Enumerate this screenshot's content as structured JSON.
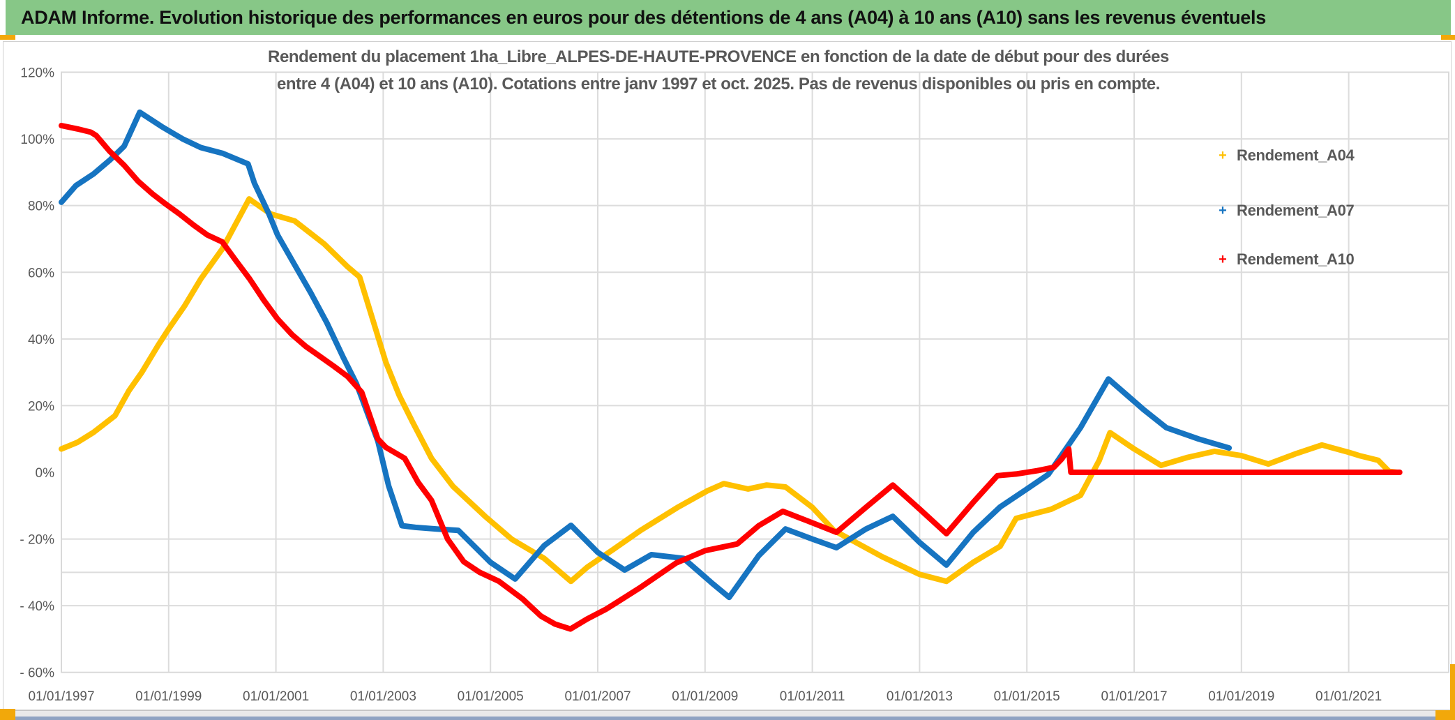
{
  "header": {
    "title": "ADAM Informe. Evolution historique des performances en euros pour des détentions de 4 ans (A04) à 10 ans (A10) sans les revenus éventuels"
  },
  "legend_marker_glyph": "+",
  "colors": {
    "header_green": "#87C787",
    "accent_orange": "#F2A80A",
    "gridline": "#DCDCDC",
    "axis_text": "#595959",
    "series_a04": "#FFC000",
    "series_a07": "#1674C1",
    "series_a10": "#FF0000",
    "bottom_band": "#E9E9E9",
    "bottom_blue_line": "#8FA3C2"
  },
  "chart_data": {
    "type": "line",
    "title_line1": "Rendement du placement 1ha_Libre_ALPES-DE-HAUTE-PROVENCE en fonction de la date de début pour des durées",
    "title_line2": "entre 4 (A04) et 10 ans (A10). Cotations entre janv 1997 et oct. 2025. Pas de revenus disponibles ou pris en compte.",
    "xlabel": "",
    "ylabel": "",
    "x_tick_years": [
      1997,
      1999,
      2001,
      2003,
      2005,
      2007,
      2009,
      2011,
      2013,
      2015,
      2017,
      2019,
      2021
    ],
    "x_tick_labels": [
      "01/01/1997",
      "01/01/1999",
      "01/01/2001",
      "01/01/2003",
      "01/01/2005",
      "01/01/2007",
      "01/01/2009",
      "01/01/2011",
      "01/01/2013",
      "01/01/2015",
      "01/01/2017",
      "01/01/2019",
      "01/01/2021"
    ],
    "y_ticks": [
      {
        "v": 120,
        "label": "120%"
      },
      {
        "v": 100,
        "label": "100%"
      },
      {
        "v": 80,
        "label": "80%"
      },
      {
        "v": 60,
        "label": "60%"
      },
      {
        "v": 40,
        "label": "40%"
      },
      {
        "v": 20,
        "label": "20%"
      },
      {
        "v": 0,
        "label": "0%"
      },
      {
        "v": -20,
        "label": "- 20%"
      },
      {
        "v": -40,
        "label": "- 40%"
      },
      {
        "v": -60,
        "label": "- 60%"
      }
    ],
    "gridlines_pct": [
      100,
      80,
      60,
      40,
      20,
      -20,
      -30,
      -40
    ],
    "xlim_years": [
      1997,
      2022.85
    ],
    "ylim_pct": [
      -60,
      120
    ],
    "grid": true,
    "legend_position": "right-inside",
    "legend": [
      {
        "name": "Rendement_A04",
        "color": "#FFC000"
      },
      {
        "name": "Rendement_A07",
        "color": "#1674C1"
      },
      {
        "name": "Rendement_A10",
        "color": "#FF0000"
      }
    ],
    "series": [
      {
        "name": "Rendement_A04",
        "color": "#FFC000",
        "points": [
          [
            1997.0,
            7
          ],
          [
            1997.3,
            9
          ],
          [
            1997.6,
            12
          ],
          [
            1998.0,
            17
          ],
          [
            1998.26,
            24.5
          ],
          [
            1998.5,
            30
          ],
          [
            1998.8,
            38
          ],
          [
            1999.0,
            43
          ],
          [
            1999.3,
            50
          ],
          [
            1999.6,
            58
          ],
          [
            2000.0,
            67
          ],
          [
            2000.2,
            73
          ],
          [
            2000.5,
            82
          ],
          [
            2000.9,
            77.5
          ],
          [
            2001.35,
            75.4
          ],
          [
            2001.9,
            68.5
          ],
          [
            2002.34,
            61.6
          ],
          [
            2002.56,
            58.6
          ],
          [
            2003.05,
            33
          ],
          [
            2003.3,
            23
          ],
          [
            2003.55,
            15
          ],
          [
            2003.9,
            4.2
          ],
          [
            2004.3,
            -4.2
          ],
          [
            2004.9,
            -13.2
          ],
          [
            2005.4,
            -20.1
          ],
          [
            2006.0,
            -25.8
          ],
          [
            2006.5,
            -32.7
          ],
          [
            2006.8,
            -28.5
          ],
          [
            2007.3,
            -23
          ],
          [
            2007.8,
            -17.4
          ],
          [
            2008.5,
            -10.4
          ],
          [
            2009.05,
            -5.5
          ],
          [
            2009.35,
            -3.4
          ],
          [
            2009.8,
            -5
          ],
          [
            2010.15,
            -3.8
          ],
          [
            2010.5,
            -4.4
          ],
          [
            2011.0,
            -10.5
          ],
          [
            2011.4,
            -17.4
          ],
          [
            2012.3,
            -25.3
          ],
          [
            2013.0,
            -30.6
          ],
          [
            2013.5,
            -32.7
          ],
          [
            2014.0,
            -27
          ],
          [
            2014.5,
            -22.2
          ],
          [
            2014.8,
            -13.8
          ],
          [
            2015.45,
            -11.1
          ],
          [
            2016.0,
            -6.9
          ],
          [
            2016.35,
            3.6
          ],
          [
            2016.55,
            11.9
          ],
          [
            2017.0,
            7
          ],
          [
            2017.5,
            2.1
          ],
          [
            2018.0,
            4.5
          ],
          [
            2018.5,
            6.3
          ],
          [
            2019.0,
            5
          ],
          [
            2019.5,
            2.5
          ],
          [
            2020.0,
            5.5
          ],
          [
            2020.5,
            8.2
          ],
          [
            2021.0,
            6
          ],
          [
            2021.2,
            5
          ],
          [
            2021.55,
            3.6
          ],
          [
            2021.75,
            0.3
          ],
          [
            2021.9,
            0
          ]
        ]
      },
      {
        "name": "Rendement_A07",
        "color": "#1674C1",
        "points": [
          [
            1997.0,
            81
          ],
          [
            1997.27,
            86
          ],
          [
            1997.6,
            89.5
          ],
          [
            1997.9,
            93.6
          ],
          [
            1998.17,
            97.8
          ],
          [
            1998.46,
            108
          ],
          [
            1998.87,
            103.7
          ],
          [
            1999.26,
            100
          ],
          [
            1999.6,
            97.4
          ],
          [
            2000.0,
            95.7
          ],
          [
            2000.48,
            92.5
          ],
          [
            2000.6,
            86.7
          ],
          [
            2000.87,
            77.5
          ],
          [
            2001.03,
            71.2
          ],
          [
            2001.35,
            62.2
          ],
          [
            2001.65,
            53.8
          ],
          [
            2001.95,
            44.8
          ],
          [
            2002.26,
            34.3
          ],
          [
            2002.5,
            26.6
          ],
          [
            2002.9,
            9.4
          ],
          [
            2003.1,
            -4
          ],
          [
            2003.35,
            -16
          ],
          [
            2003.6,
            -16.5
          ],
          [
            2004.0,
            -17
          ],
          [
            2004.4,
            -17.4
          ],
          [
            2005.0,
            -27
          ],
          [
            2005.46,
            -32
          ],
          [
            2006.0,
            -22
          ],
          [
            2006.5,
            -15.9
          ],
          [
            2007.0,
            -24
          ],
          [
            2007.5,
            -29.3
          ],
          [
            2008.0,
            -24.7
          ],
          [
            2008.6,
            -25.8
          ],
          [
            2009.15,
            -33.5
          ],
          [
            2009.45,
            -37.5
          ],
          [
            2010.0,
            -25
          ],
          [
            2010.5,
            -17
          ],
          [
            2011.0,
            -20
          ],
          [
            2011.45,
            -22.6
          ],
          [
            2012.0,
            -17
          ],
          [
            2012.5,
            -13.2
          ],
          [
            2013.0,
            -21
          ],
          [
            2013.5,
            -27.8
          ],
          [
            2014.0,
            -18
          ],
          [
            2014.5,
            -10.4
          ],
          [
            2015.0,
            -5
          ],
          [
            2015.4,
            -0.6
          ],
          [
            2016.0,
            13.4
          ],
          [
            2016.52,
            28
          ],
          [
            2017.17,
            18.9
          ],
          [
            2017.6,
            13.4
          ],
          [
            2018.2,
            10
          ],
          [
            2018.77,
            7.3
          ]
        ]
      },
      {
        "name": "Rendement_A10",
        "color": "#FF0000",
        "points": [
          [
            1997.0,
            104
          ],
          [
            1997.3,
            103
          ],
          [
            1997.55,
            102
          ],
          [
            1997.65,
            101
          ],
          [
            1997.9,
            96.3
          ],
          [
            1998.17,
            92.1
          ],
          [
            1998.43,
            87.3
          ],
          [
            1998.7,
            83.5
          ],
          [
            1998.95,
            80.4
          ],
          [
            1999.2,
            77.5
          ],
          [
            1999.47,
            74.1
          ],
          [
            1999.72,
            71.2
          ],
          [
            2000.0,
            69.1
          ],
          [
            2000.25,
            63.6
          ],
          [
            2000.51,
            58
          ],
          [
            2000.77,
            51.7
          ],
          [
            2001.03,
            46
          ],
          [
            2001.3,
            41.3
          ],
          [
            2001.56,
            37.7
          ],
          [
            2001.8,
            35
          ],
          [
            2002.08,
            31.8
          ],
          [
            2002.34,
            28.7
          ],
          [
            2002.6,
            24
          ],
          [
            2002.9,
            10
          ],
          [
            2003.05,
            7.5
          ],
          [
            2003.4,
            4.2
          ],
          [
            2003.65,
            -3
          ],
          [
            2003.9,
            -8.4
          ],
          [
            2004.2,
            -20
          ],
          [
            2004.5,
            -26.8
          ],
          [
            2004.8,
            -30
          ],
          [
            2005.16,
            -32.7
          ],
          [
            2005.6,
            -38
          ],
          [
            2005.94,
            -43.1
          ],
          [
            2006.2,
            -45.5
          ],
          [
            2006.49,
            -47
          ],
          [
            2006.8,
            -44
          ],
          [
            2007.16,
            -41
          ],
          [
            2007.77,
            -34.8
          ],
          [
            2008.46,
            -27.2
          ],
          [
            2009.0,
            -23.5
          ],
          [
            2009.6,
            -21.5
          ],
          [
            2010.0,
            -16
          ],
          [
            2010.45,
            -11.7
          ],
          [
            2010.9,
            -14.5
          ],
          [
            2011.45,
            -18
          ],
          [
            2012.0,
            -10.5
          ],
          [
            2012.5,
            -3.8
          ],
          [
            2013.0,
            -11
          ],
          [
            2013.5,
            -18.4
          ],
          [
            2014.0,
            -9
          ],
          [
            2014.45,
            -1
          ],
          [
            2014.8,
            -0.5
          ],
          [
            2015.2,
            0.5
          ],
          [
            2015.5,
            1.5
          ],
          [
            2015.65,
            4
          ],
          [
            2015.78,
            7
          ],
          [
            2015.82,
            0
          ],
          [
            2016.5,
            0
          ],
          [
            2017.5,
            0
          ],
          [
            2018.5,
            0
          ],
          [
            2019.5,
            0
          ],
          [
            2020.5,
            0
          ],
          [
            2021.5,
            0
          ],
          [
            2021.95,
            0
          ]
        ]
      }
    ]
  }
}
